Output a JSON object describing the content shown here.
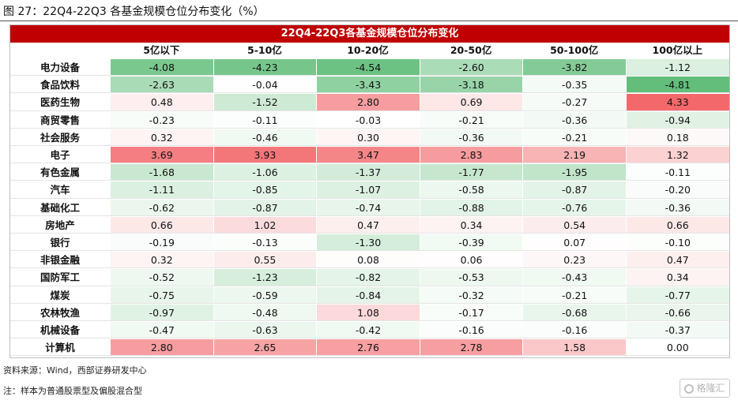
{
  "figure": {
    "title": "图 27：22Q4-22Q3 各基金规模仓位分布变化（%）",
    "source": "资料来源：Wind，西部证券研发中心",
    "note": "注：样本为普通股票型及偏股混合型",
    "watermark": "格隆汇"
  },
  "chart_data": {
    "type": "table",
    "title": "22Q4-22Q3各基金规模仓位分布变化",
    "columns": [
      "5亿以下",
      "5-10亿",
      "10-20亿",
      "20-50亿",
      "50-100亿",
      "100亿以上"
    ],
    "rows": [
      {
        "name": "电力设备",
        "values": [
          -4.08,
          -4.23,
          -4.54,
          -2.6,
          -3.82,
          -1.12
        ]
      },
      {
        "name": "食品饮料",
        "values": [
          -2.63,
          -0.04,
          -3.43,
          -3.18,
          -0.35,
          -4.81
        ]
      },
      {
        "name": "医药生物",
        "values": [
          0.48,
          -1.52,
          2.8,
          0.69,
          -0.27,
          4.33
        ]
      },
      {
        "name": "商贸零售",
        "values": [
          -0.23,
          -0.11,
          -0.03,
          -0.21,
          -0.36,
          -0.94
        ]
      },
      {
        "name": "社会服务",
        "values": [
          0.32,
          -0.46,
          0.3,
          -0.36,
          -0.21,
          0.18
        ]
      },
      {
        "name": "电子",
        "values": [
          3.69,
          3.93,
          3.47,
          2.83,
          2.19,
          1.32
        ]
      },
      {
        "name": "有色金属",
        "values": [
          -1.68,
          -1.06,
          -1.37,
          -1.77,
          -1.95,
          -0.11
        ]
      },
      {
        "name": "汽车",
        "values": [
          -1.11,
          -0.85,
          -1.07,
          -0.58,
          -0.87,
          -0.2
        ]
      },
      {
        "name": "基础化工",
        "values": [
          -0.62,
          -0.87,
          -0.74,
          -0.88,
          -0.76,
          -0.36
        ]
      },
      {
        "name": "房地产",
        "values": [
          0.66,
          1.02,
          0.47,
          0.34,
          0.54,
          0.66
        ]
      },
      {
        "name": "银行",
        "values": [
          -0.19,
          -0.13,
          -1.3,
          -0.39,
          0.07,
          -0.1
        ]
      },
      {
        "name": "非银金融",
        "values": [
          0.32,
          0.55,
          0.08,
          0.06,
          0.23,
          0.47
        ]
      },
      {
        "name": "国防军工",
        "values": [
          -0.52,
          -1.23,
          -0.82,
          -0.53,
          -0.43,
          0.34
        ]
      },
      {
        "name": "煤炭",
        "values": [
          -0.75,
          -0.59,
          -0.84,
          -0.32,
          -0.21,
          -0.77
        ]
      },
      {
        "name": "农林牧渔",
        "values": [
          -0.97,
          -0.48,
          1.08,
          -0.17,
          -0.68,
          -0.66
        ]
      },
      {
        "name": "机械设备",
        "values": [
          -0.47,
          -0.63,
          -0.42,
          -0.16,
          -0.16,
          -0.37
        ]
      },
      {
        "name": "计算机",
        "values": [
          2.8,
          2.65,
          2.76,
          2.78,
          1.58,
          0.0
        ]
      }
    ],
    "value_range": [
      -4.81,
      4.33
    ],
    "colors": {
      "banner": "#c00000",
      "positive_max": "#f2686b",
      "negative_max": "#63be7b",
      "neutral": "#ffffff"
    }
  }
}
